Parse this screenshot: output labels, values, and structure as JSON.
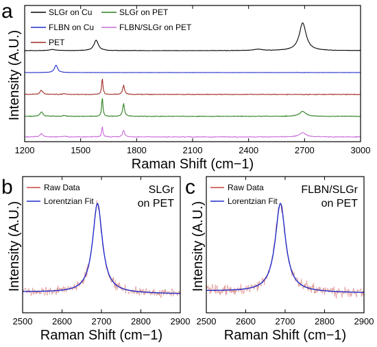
{
  "figure": {
    "panels": [
      {
        "panel_label": "a",
        "xlabel": "Raman Shift (cm−1)",
        "ylabel": "Intensity (A.U.)",
        "xticks": [
          "1200",
          "1500",
          "1800",
          "2100",
          "2400",
          "2700",
          "3000"
        ]
      },
      {
        "panel_label": "b",
        "xlabel": "Raman Shift (cm−1)",
        "ylabel": "Intensity (A.U.)",
        "annotation": [
          "SLGr",
          "on PET"
        ],
        "xticks": [
          "2500",
          "2600",
          "2700",
          "2800",
          "2900"
        ]
      },
      {
        "panel_label": "c",
        "xlabel": "Raman Shift (cm−1)",
        "ylabel": "Intensity (A.U.)",
        "annotation": [
          "FLBN/SLGr",
          "on PET"
        ],
        "xticks": [
          "2500",
          "2600",
          "2700",
          "2800",
          "2900"
        ]
      }
    ]
  },
  "chart_data": [
    {
      "type": "line",
      "title": "",
      "xlabel": "Raman Shift (cm−1)",
      "ylabel": "Intensity (A.U.)",
      "xlim": [
        1200,
        3000
      ],
      "yticks_shown": false,
      "legend": "top-left, two columns",
      "series": [
        {
          "name": "SLGr on Cu",
          "color": "#000000",
          "offset": 5,
          "noise": 0.015,
          "peaks": [
            [
              1350,
              0.06,
              20
            ],
            [
              1583,
              0.55,
              14
            ],
            [
              2450,
              0.07,
              25
            ],
            [
              2690,
              1.45,
              22
            ]
          ]
        },
        {
          "name": "FLBN on Cu",
          "color": "#1f2bc8",
          "offset": 4,
          "noise": 0.015,
          "peaks": [
            [
              1368,
              0.45,
              10
            ]
          ]
        },
        {
          "name": "PET",
          "color": "#a02a22",
          "offset": 3,
          "noise": 0.03,
          "peaks": [
            [
              1290,
              0.25,
              9
            ],
            [
              1412,
              0.06,
              8
            ],
            [
              1616,
              1.0,
              4
            ],
            [
              1730,
              0.55,
              6
            ]
          ]
        },
        {
          "name": "SLGr on PET",
          "color": "#2a7f1e",
          "offset": 2,
          "noise": 0.03,
          "peaks": [
            [
              1290,
              0.28,
              9
            ],
            [
              1412,
              0.06,
              8
            ],
            [
              1616,
              1.15,
              4
            ],
            [
              1730,
              0.75,
              6
            ],
            [
              2690,
              0.3,
              20
            ]
          ]
        },
        {
          "name": "FLBN/SLGr on PET",
          "color": "#c86ad8",
          "offset": 1,
          "noise": 0.04,
          "peaks": [
            [
              1290,
              0.22,
              9
            ],
            [
              1412,
              0.05,
              8
            ],
            [
              1616,
              0.7,
              4
            ],
            [
              1730,
              0.45,
              6
            ],
            [
              2690,
              0.28,
              20
            ]
          ]
        }
      ]
    },
    {
      "type": "line",
      "title": "",
      "xlabel": "Raman Shift (cm−1)",
      "ylabel": "Intensity (A.U.)",
      "xlim": [
        2500,
        2900
      ],
      "yticks_shown": false,
      "legend": "top-left",
      "series": [
        {
          "name": "Raw Data",
          "color": "#c8473e",
          "center": 2690,
          "fwhm": 30,
          "amplitude": 1.0,
          "baseline": 0.06,
          "noise": 0.05
        },
        {
          "name": "Lorentzian Fit",
          "color": "#1f2bc8",
          "center": 2690,
          "fwhm": 30,
          "amplitude": 1.0,
          "baseline": 0.06
        }
      ]
    },
    {
      "type": "line",
      "title": "",
      "xlabel": "Raman Shift (cm−1)",
      "ylabel": "Intensity (A.U.)",
      "xlim": [
        2500,
        2900
      ],
      "yticks_shown": false,
      "legend": "top-left",
      "series": [
        {
          "name": "Raw Data",
          "color": "#c8473e",
          "center": 2688,
          "fwhm": 32,
          "amplitude": 1.0,
          "baseline": 0.07,
          "noise": 0.06
        },
        {
          "name": "Lorentzian Fit",
          "color": "#1f2bc8",
          "center": 2688,
          "fwhm": 32,
          "amplitude": 1.0,
          "baseline": 0.07
        }
      ]
    }
  ]
}
